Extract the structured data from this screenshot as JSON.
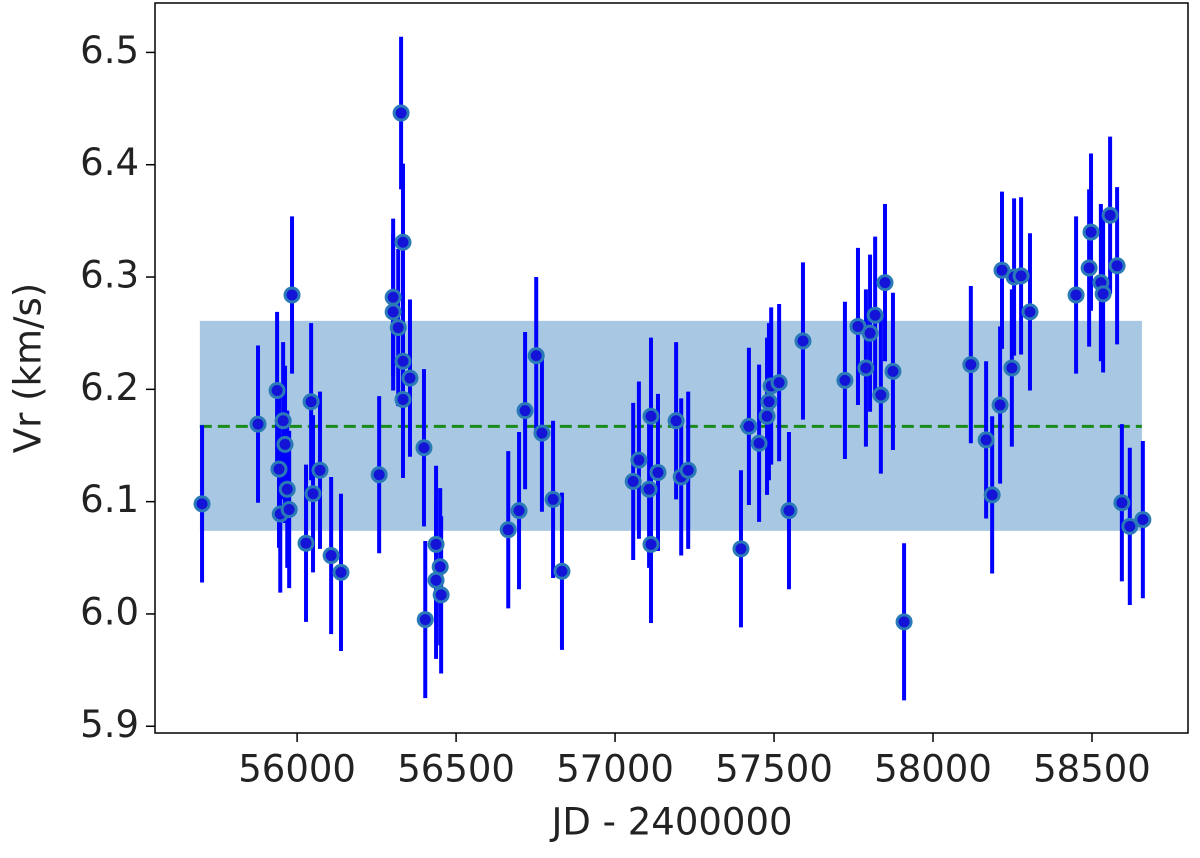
{
  "chart_data": {
    "type": "scatter",
    "xlabel": "JD - 2400000",
    "ylabel": "Vr (km/s)",
    "x": [
      55701,
      55877,
      55937,
      55943,
      55947,
      55956,
      55962,
      55969,
      55975,
      55984,
      56028,
      56044,
      56050,
      56072,
      56107,
      56138,
      56258,
      56302,
      56302,
      56318,
      56327,
      56333,
      56333,
      56333,
      56355,
      56399,
      56403,
      56437,
      56437,
      56450,
      56453,
      56664,
      56698,
      56717,
      56752,
      56770,
      56805,
      56833,
      57057,
      57075,
      57107,
      57113,
      57113,
      57135,
      57192,
      57208,
      57230,
      57396,
      57421,
      57453,
      57478,
      57484,
      57491,
      57516,
      57547,
      57591,
      57723,
      57764,
      57789,
      57802,
      57818,
      57836,
      57849,
      57874,
      57909,
      58119,
      58167,
      58186,
      58211,
      58217,
      58248,
      58255,
      58277,
      58305,
      58450,
      58491,
      58497,
      58528,
      58535,
      58557,
      58579,
      58594,
      58619,
      58660
    ],
    "y": [
      6.098,
      6.169,
      6.199,
      6.129,
      6.089,
      6.172,
      6.151,
      6.111,
      6.093,
      6.284,
      6.063,
      6.189,
      6.107,
      6.128,
      6.052,
      6.037,
      6.124,
      6.282,
      6.269,
      6.255,
      6.446,
      6.331,
      6.191,
      6.225,
      6.21,
      6.148,
      5.995,
      6.062,
      6.03,
      6.042,
      6.017,
      6.075,
      6.092,
      6.181,
      6.23,
      6.161,
      6.102,
      6.038,
      6.118,
      6.137,
      6.111,
      6.176,
      6.062,
      6.126,
      6.172,
      6.122,
      6.128,
      6.058,
      6.167,
      6.152,
      6.176,
      6.189,
      6.203,
      6.206,
      6.092,
      6.243,
      6.208,
      6.256,
      6.219,
      6.25,
      6.266,
      6.195,
      6.295,
      6.216,
      5.993,
      6.222,
      6.155,
      6.106,
      6.186,
      6.306,
      6.219,
      6.3,
      6.301,
      6.269,
      6.284,
      6.308,
      6.34,
      6.295,
      6.285,
      6.355,
      6.31,
      6.099,
      6.078,
      6.084
    ],
    "errors": [
      0.07,
      0.07,
      0.07,
      0.07,
      0.07,
      0.07,
      0.07,
      0.07,
      0.07,
      0.07,
      0.07,
      0.07,
      0.07,
      0.07,
      0.07,
      0.07,
      0.07,
      0.07,
      0.07,
      0.07,
      0.068,
      0.07,
      0.07,
      0.07,
      0.07,
      0.07,
      0.07,
      0.07,
      0.07,
      0.07,
      0.07,
      0.07,
      0.07,
      0.07,
      0.07,
      0.07,
      0.07,
      0.07,
      0.07,
      0.07,
      0.07,
      0.07,
      0.07,
      0.07,
      0.07,
      0.07,
      0.07,
      0.07,
      0.07,
      0.07,
      0.07,
      0.07,
      0.07,
      0.07,
      0.07,
      0.07,
      0.07,
      0.07,
      0.07,
      0.07,
      0.07,
      0.07,
      0.07,
      0.07,
      0.07,
      0.07,
      0.07,
      0.07,
      0.07,
      0.07,
      0.07,
      0.07,
      0.07,
      0.07,
      0.07,
      0.07,
      0.07,
      0.07,
      0.07,
      0.07,
      0.07,
      0.07,
      0.07,
      0.07
    ],
    "marker_color": "#1414d8",
    "marker_edge_color": "#2a7ab8",
    "error_color": "#0000ff",
    "band": {
      "x": [
        55694,
        58657
      ],
      "y": [
        6.074,
        6.261
      ],
      "color": "#a7c7e2"
    },
    "mean_line": {
      "x": [
        55694,
        58657
      ],
      "y": 6.167,
      "color": "#1a8a1a"
    },
    "xlim": [
      55553,
      58802
    ],
    "ylim": [
      5.894,
      6.544
    ],
    "xticks": [
      56000,
      56500,
      57000,
      57500,
      58000,
      58500
    ],
    "yticks": [
      5.9,
      {
        "value": 6,
        "label": "6.0"
      },
      6.1,
      6.2,
      6.3,
      6.4,
      6.5
    ]
  }
}
